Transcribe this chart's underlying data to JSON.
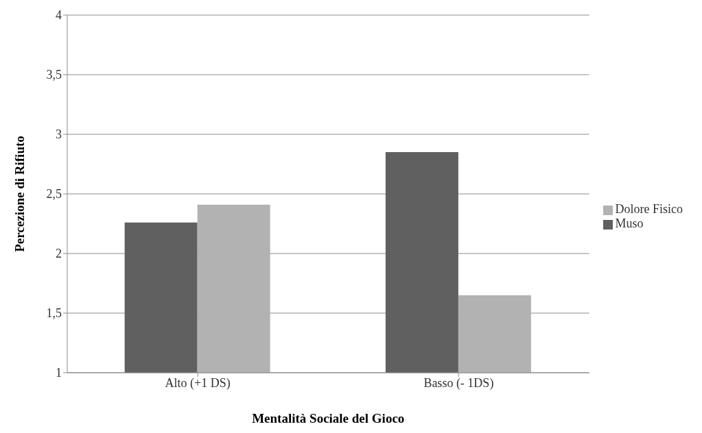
{
  "chart_data": {
    "type": "bar",
    "xlabel": "Mentalità Sociale del Gioco",
    "ylabel": "Percezione di Rifiuto",
    "categories": [
      "Alto (+1 DS)",
      "Basso (- 1DS)"
    ],
    "series": [
      {
        "name": "Muso",
        "color": "#606060",
        "values": [
          2.26,
          2.85
        ]
      },
      {
        "name": "Dolore Fisico",
        "color": "#b2b2b2",
        "values": [
          2.41,
          1.65
        ]
      }
    ],
    "ylim": [
      1,
      4
    ],
    "yticks": [
      1,
      {
        "value": 1.5,
        "label": "1,5"
      },
      2,
      {
        "value": 2.5,
        "label": "2,5"
      },
      3,
      {
        "value": 3.5,
        "label": "3,5"
      },
      4
    ],
    "grid": "y",
    "legend": "right"
  }
}
